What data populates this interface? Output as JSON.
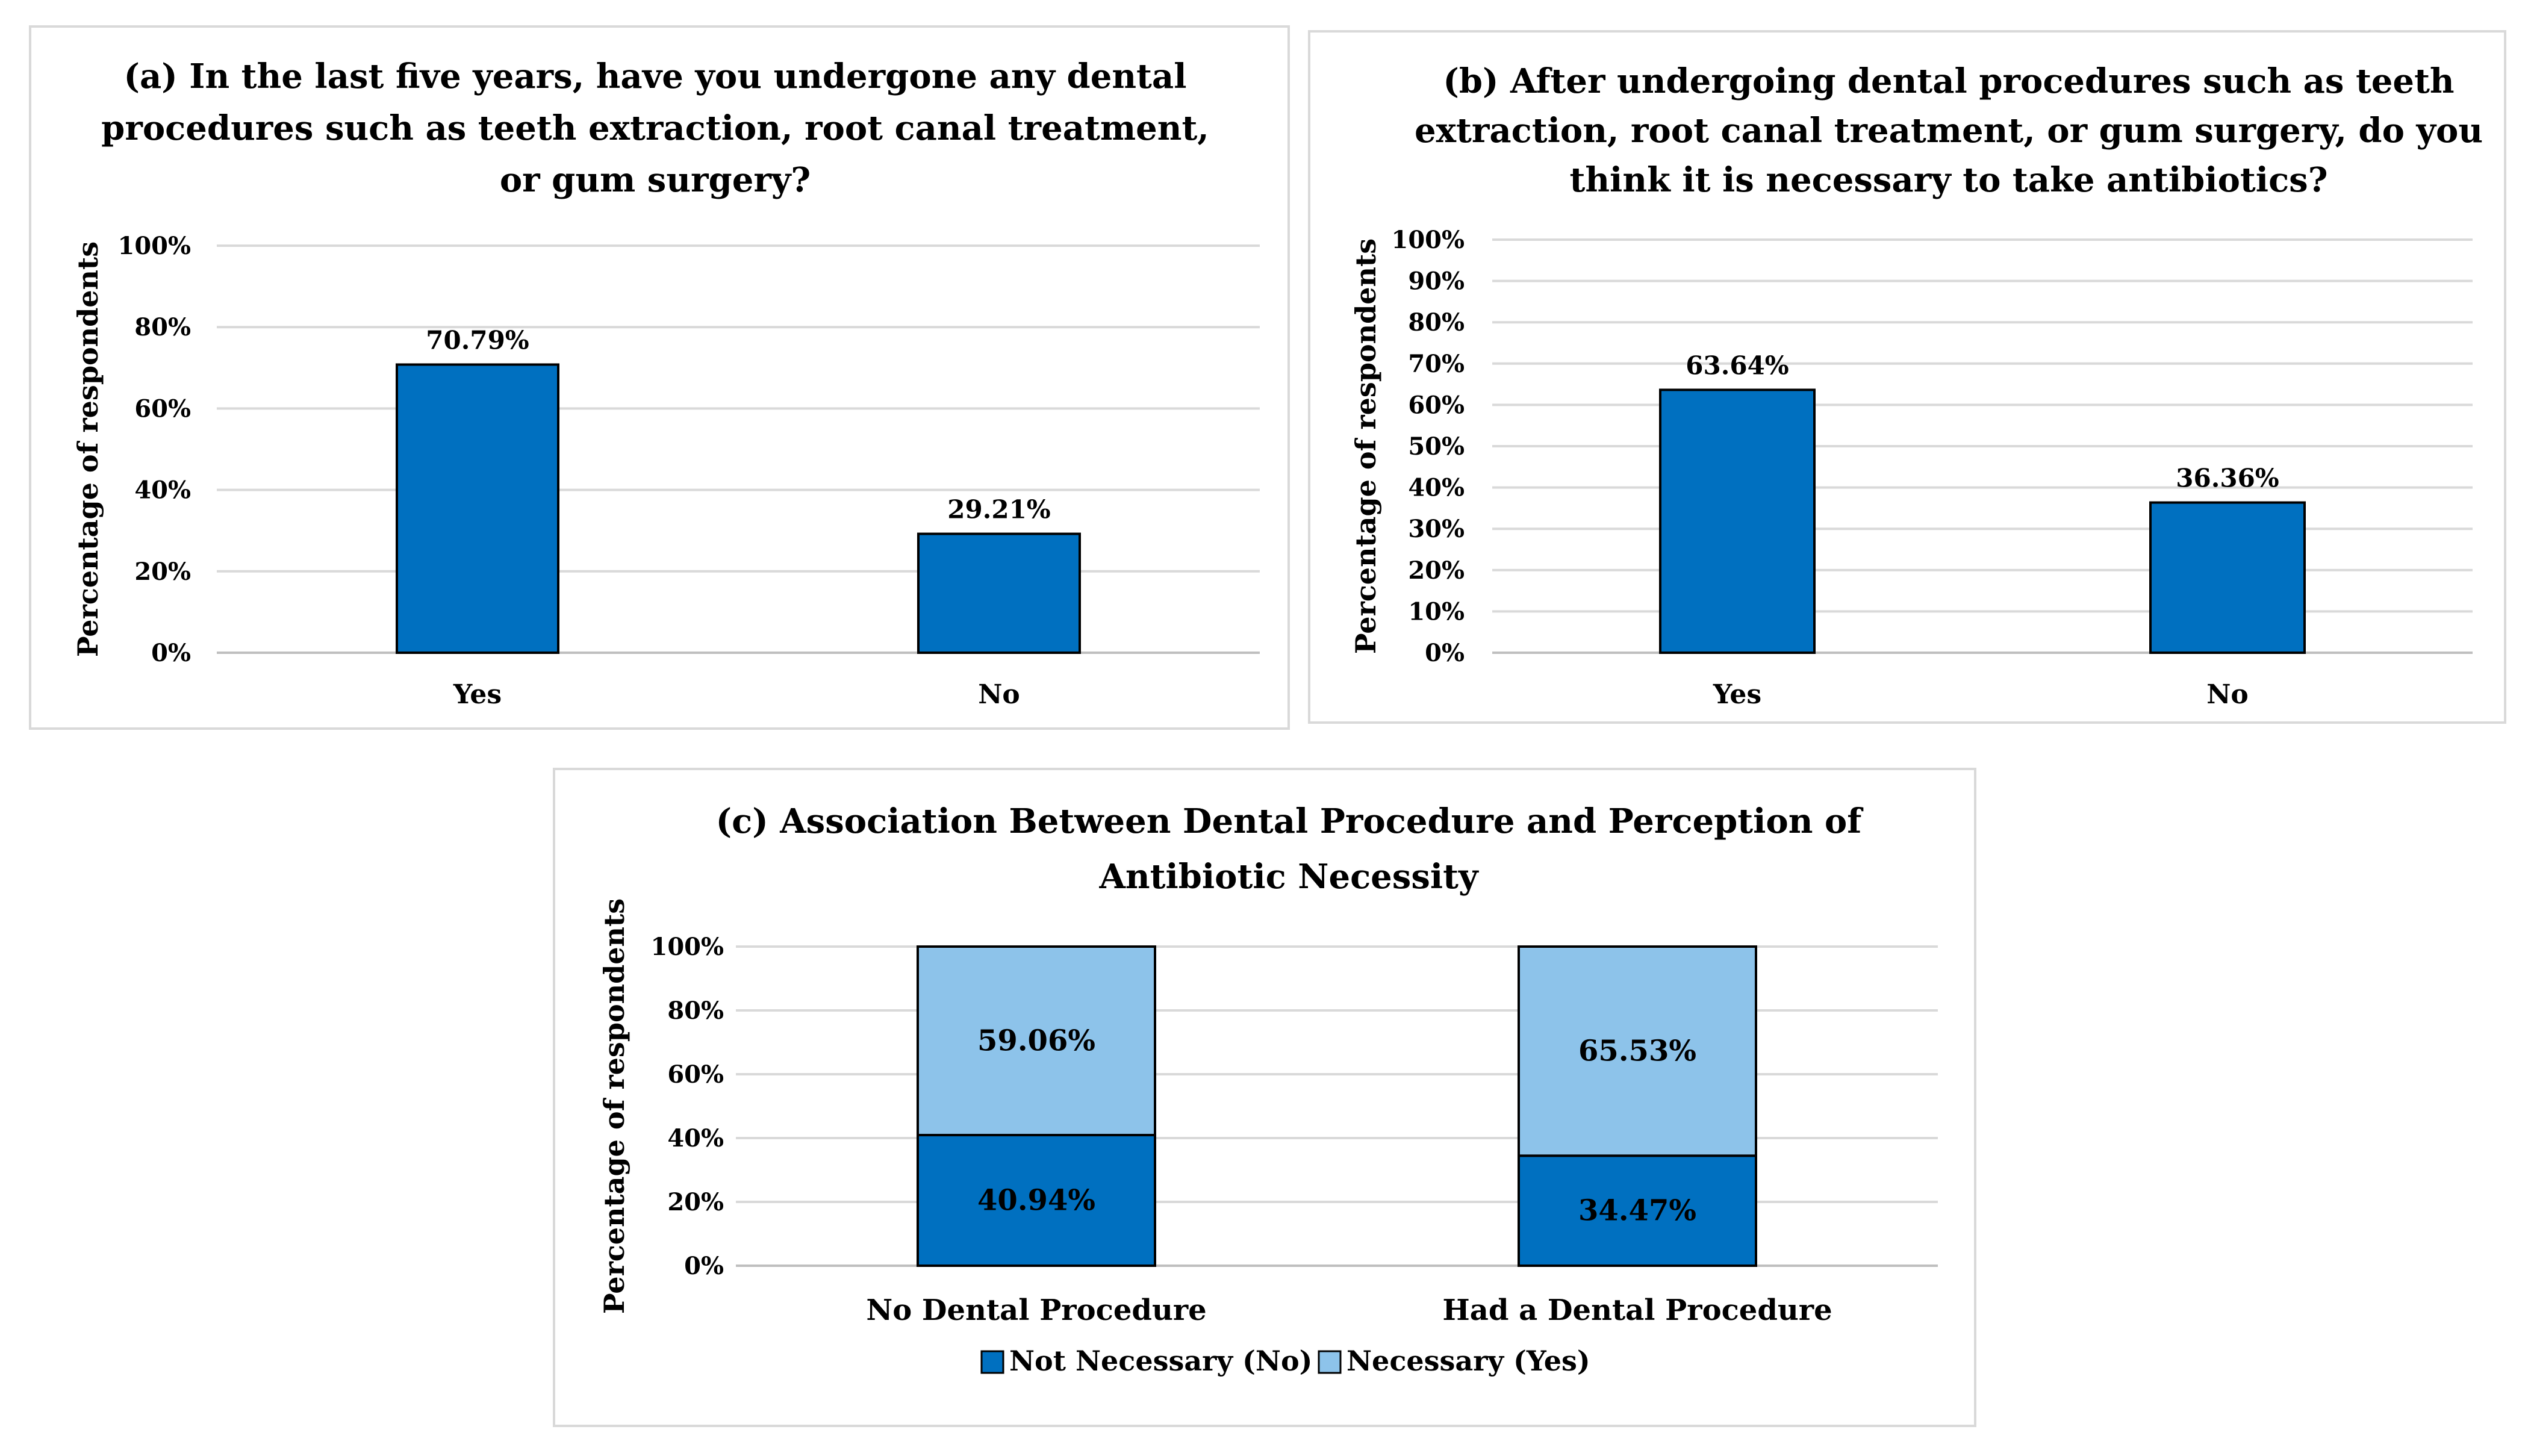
{
  "chart_data": [
    {
      "type": "bar",
      "title": [
        "(a)  In the last five years, have you undergone any dental",
        "procedures such as teeth extraction, root canal treatment,",
        "or gum surgery?"
      ],
      "ylabel": "Percentage of respondents",
      "xlabel": "",
      "categories": [
        "Yes",
        "No"
      ],
      "values": [
        70.79,
        29.21
      ],
      "data_labels": [
        "70.79%",
        "29.21%"
      ],
      "ylim": [
        0,
        100
      ],
      "yticks": [
        "0%",
        "20%",
        "40%",
        "60%",
        "80%",
        "100%"
      ],
      "color": "#0070c0"
    },
    {
      "type": "bar",
      "title": [
        "(b) After undergoing dental procedures such as teeth",
        "extraction, root canal treatment, or gum surgery, do you",
        "think it is necessary to take antibiotics?"
      ],
      "ylabel": "Percentage of respondents",
      "xlabel": "",
      "categories": [
        "Yes",
        "No"
      ],
      "values": [
        63.64,
        36.36
      ],
      "data_labels": [
        "63.64%",
        "36.36%"
      ],
      "ylim": [
        0,
        100
      ],
      "yticks": [
        "0%",
        "10%",
        "20%",
        "30%",
        "40%",
        "50%",
        "60%",
        "70%",
        "80%",
        "90%",
        "100%"
      ],
      "color": "#0070c0"
    },
    {
      "type": "bar",
      "stacked": true,
      "title": [
        "(c) Association Between Dental Procedure and Perception of",
        "Antibiotic Necessity"
      ],
      "ylabel": "Percentage of respondents",
      "xlabel": "",
      "categories": [
        "No Dental Procedure",
        "Had a Dental Procedure"
      ],
      "series": [
        {
          "name": "Not Necessary (No)",
          "values": [
            40.94,
            34.47
          ],
          "labels": [
            "40.94%",
            "34.47%"
          ],
          "color": "#0070c0"
        },
        {
          "name": "Necessary (Yes)",
          "values": [
            59.06,
            65.53
          ],
          "labels": [
            "59.06%",
            "65.53%"
          ],
          "color": "#8dc3ea"
        }
      ],
      "ylim": [
        0,
        100
      ],
      "yticks": [
        "0%",
        "20%",
        "40%",
        "60%",
        "80%",
        "100%"
      ],
      "legend": "bottom"
    }
  ]
}
